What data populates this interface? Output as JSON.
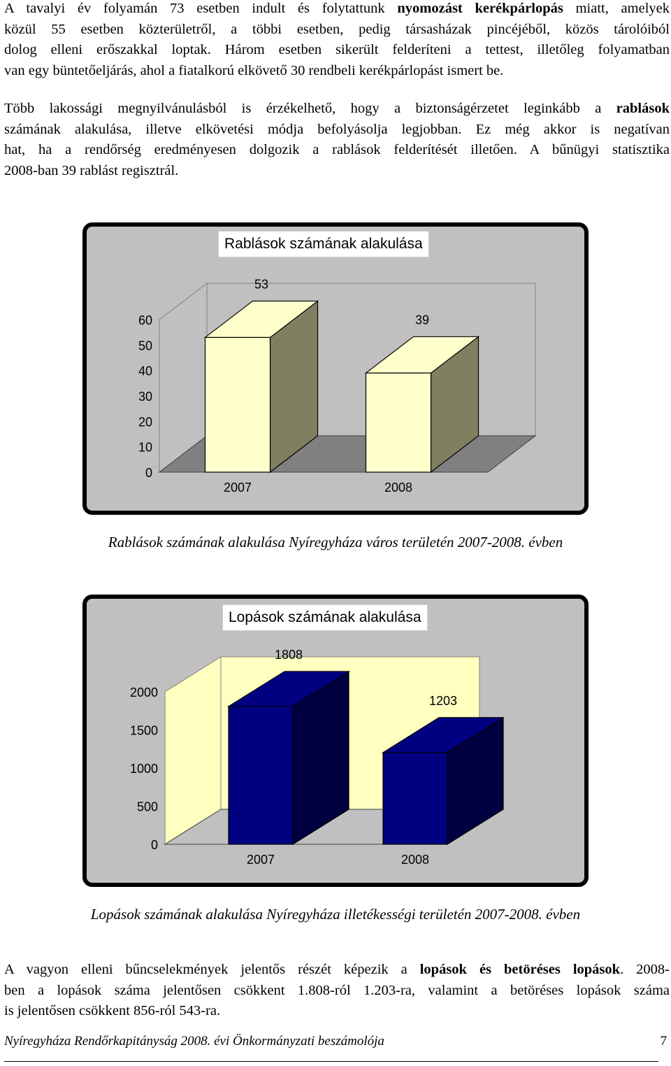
{
  "para1": {
    "l1a": "A tavalyi év folyamán 73 esetben indult és folytattunk ",
    "l1b": "nyomozást kerékpárlopás",
    "l1c": " miatt, amelyek",
    "l2": "közül 55 esetben közterületről, a többi esetben, pedig társasházak pincéjéből, közös tárolóiból",
    "l3": "dolog elleni erőszakkal loptak. Három esetben sikerült felderíteni a tettest, illetőleg folyamatban",
    "l4": "van egy büntetőeljárás, ahol a fiatalkorú elkövető 30 rendbeli kerékpárlopást ismert be."
  },
  "para2": {
    "l1a": "Több lakossági megnyilvánulásból is érzékelhető, hogy a biztonságérzetet leginkább a ",
    "l1b": "rablások",
    "l2": "számának alakulása, illetve elkövetési módja befolyásolja legjobban. Ez még akkor is negatívan",
    "l3": "hat, ha a rendőrség eredményesen dolgozik a rablások felderítését illetően. A bűnügyi statisztika",
    "l4": "2008-ban 39 rablást regisztrál."
  },
  "chart_data": [
    {
      "type": "bar",
      "title": "Rablások számának alakulása",
      "categories": [
        "2007",
        "2008"
      ],
      "values": [
        53,
        39
      ],
      "data_labels": [
        "53",
        "39"
      ],
      "yticks": [
        "0",
        "10",
        "20",
        "30",
        "40",
        "50",
        "60"
      ],
      "ylim": [
        0,
        60
      ],
      "bar_color": "#ffffcc",
      "bar_side_color": "#808060",
      "wall_color": "#c0c0c0",
      "floor_color": "#808080",
      "caption": "Rablások számának alakulása Nyíregyháza város területén 2007-2008. évben"
    },
    {
      "type": "bar",
      "title": "Lopások számának alakulása",
      "categories": [
        "2007",
        "2008"
      ],
      "values": [
        1808,
        1203
      ],
      "data_labels": [
        "1808",
        "1203"
      ],
      "yticks": [
        "0",
        "500",
        "1000",
        "1500",
        "2000"
      ],
      "ylim": [
        0,
        2000
      ],
      "bar_color": "#000080",
      "bar_side_color": "#000040",
      "wall_color": "#ffffc0",
      "floor_color": "#c0c0c0",
      "caption": "Lopások számának alakulása Nyíregyháza illetékességi területén 2007-2008. évben"
    }
  ],
  "para3": {
    "l1a": "A vagyon elleni bűncselekmények jelentős részét képezik a ",
    "l1b": "lopások és betöréses lopások",
    "l1c": ". 2008-",
    "l2": "ben a lopások száma jelentősen csökkent 1.808-ról 1.203-ra, valamint a betöréses lopások száma",
    "l3": "is jelentősen csökkent 856-ról 543-ra."
  },
  "footer": {
    "text": "Nyíregyháza Rendőrkapitányság 2008. évi Önkormányzati beszámolója",
    "page": "7"
  }
}
